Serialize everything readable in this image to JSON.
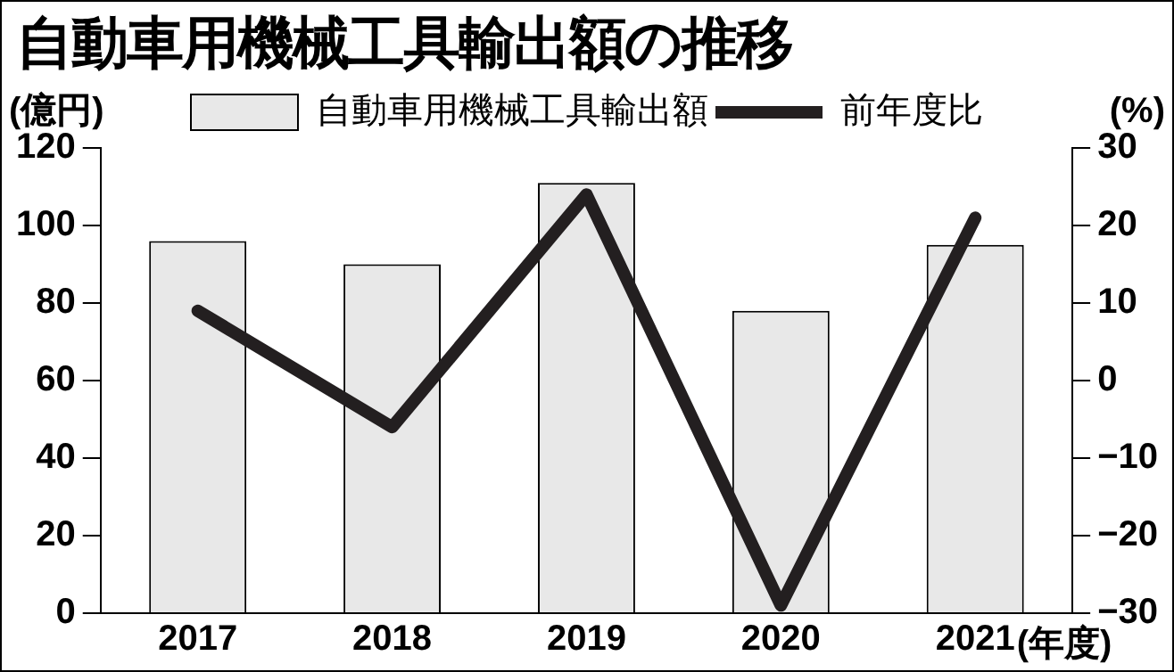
{
  "chart_data": {
    "type": "bar",
    "title": "自動車用機械工具輸出額の推移",
    "ylabel": "(億円)",
    "y2label": "(%)",
    "xlabel": "(年度)",
    "categories": [
      "2017",
      "2018",
      "2019",
      "2020",
      "2021"
    ],
    "series": [
      {
        "name": "自動車用機械工具輸出額",
        "color": "#e8e8e8",
        "values": [
          96,
          90,
          111,
          78,
          95
        ]
      },
      {
        "name": "前年度比",
        "type": "line",
        "axis": "y2",
        "color": "#231f20",
        "values": [
          9,
          -6,
          24,
          -29,
          21
        ]
      }
    ],
    "ylim": [
      0,
      120
    ],
    "yticks": [
      0,
      20,
      40,
      60,
      80,
      100,
      120
    ],
    "y2lim": [
      -30,
      30
    ],
    "y2ticks": [
      -30,
      -20,
      -10,
      0,
      10,
      20,
      30
    ],
    "legend": "top"
  }
}
